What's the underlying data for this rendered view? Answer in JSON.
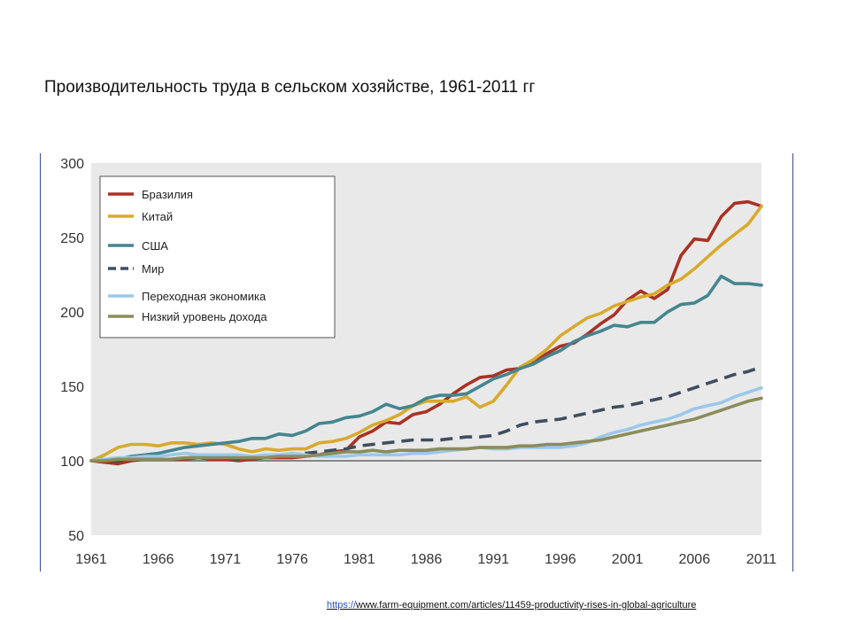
{
  "slide": {
    "title": "Производительность труда в сельском хозяйстве, 1961-2011 гг"
  },
  "source": {
    "prefix": "https://",
    "path": "www.farm-equipment.com/articles/11459-productivity-rises-in-global-agriculture"
  },
  "chart_data": {
    "type": "line",
    "title": "",
    "xlabel": "",
    "ylabel": "",
    "xlim": [
      1961,
      2011
    ],
    "ylim": [
      50,
      300
    ],
    "xticks": [
      "1961",
      "1966",
      "1971",
      "1976",
      "1981",
      "1986",
      "1991",
      "1996",
      "2001",
      "2006",
      "2011"
    ],
    "yticks": [
      "50",
      "100",
      "150",
      "200",
      "250",
      "300"
    ],
    "reference_line": 100,
    "grid": false,
    "legend_position": "top-left",
    "x": [
      1961,
      1962,
      1963,
      1964,
      1965,
      1966,
      1967,
      1968,
      1969,
      1970,
      1971,
      1972,
      1973,
      1974,
      1975,
      1976,
      1977,
      1978,
      1979,
      1980,
      1981,
      1982,
      1983,
      1984,
      1985,
      1986,
      1987,
      1988,
      1989,
      1990,
      1991,
      1992,
      1993,
      1994,
      1995,
      1996,
      1997,
      1998,
      1999,
      2000,
      2001,
      2002,
      2003,
      2004,
      2005,
      2006,
      2007,
      2008,
      2009,
      2010,
      2011
    ],
    "series": [
      {
        "name": "Бразилия",
        "color": "#a83224",
        "dash": false,
        "values": [
          100,
          99,
          98,
          100,
          101,
          101,
          101,
          101,
          102,
          101,
          101,
          100,
          101,
          102,
          102,
          102,
          103,
          104,
          106,
          107,
          116,
          120,
          126,
          125,
          131,
          133,
          138,
          145,
          151,
          156,
          157,
          161,
          162,
          166,
          172,
          177,
          179,
          185,
          192,
          198,
          208,
          214,
          209,
          215,
          238,
          249,
          248,
          264,
          273,
          274,
          271
        ]
      },
      {
        "name": "Китай",
        "color": "#d8aa2c",
        "dash": false,
        "values": [
          100,
          104,
          109,
          111,
          111,
          110,
          112,
          112,
          111,
          112,
          111,
          108,
          106,
          108,
          107,
          108,
          108,
          112,
          113,
          115,
          119,
          124,
          127,
          131,
          137,
          140,
          140,
          140,
          143,
          136,
          140,
          151,
          163,
          168,
          175,
          184,
          190,
          196,
          199,
          204,
          207,
          210,
          212,
          218,
          222,
          229,
          237,
          245,
          252,
          259,
          271
        ]
      },
      {
        "name": "США",
        "color": "#45858f",
        "dash": false,
        "values": [
          100,
          101,
          101,
          103,
          104,
          105,
          107,
          109,
          110,
          111,
          112,
          113,
          115,
          115,
          118,
          117,
          120,
          125,
          126,
          129,
          130,
          133,
          138,
          135,
          137,
          142,
          144,
          144,
          145,
          150,
          155,
          158,
          162,
          165,
          170,
          174,
          180,
          184,
          187,
          191,
          190,
          193,
          193,
          200,
          205,
          206,
          211,
          224,
          219,
          219,
          218
        ]
      },
      {
        "name": "Мир",
        "color": "#3f4e5f",
        "dash": true,
        "values": [
          100,
          100,
          100,
          101,
          101,
          101,
          101,
          102,
          102,
          102,
          102,
          101,
          102,
          103,
          103,
          104,
          105,
          106,
          107,
          108,
          110,
          111,
          112,
          113,
          114,
          114,
          114,
          115,
          116,
          116,
          117,
          120,
          124,
          126,
          127,
          128,
          130,
          132,
          134,
          136,
          137,
          139,
          141,
          143,
          146,
          149,
          152,
          155,
          158,
          160,
          163
        ]
      },
      {
        "name": "Переходная экономика",
        "color": "#9bc8ea",
        "dash": false,
        "values": [
          100,
          101,
          102,
          102,
          103,
          103,
          104,
          105,
          104,
          104,
          104,
          104,
          103,
          104,
          104,
          105,
          104,
          103,
          103,
          103,
          104,
          104,
          104,
          104,
          105,
          105,
          106,
          107,
          108,
          109,
          108,
          108,
          109,
          109,
          109,
          109,
          110,
          112,
          116,
          119,
          121,
          124,
          126,
          128,
          131,
          135,
          137,
          139,
          143,
          146,
          149
        ]
      },
      {
        "name": "Низкий уровень дохода",
        "color": "#8b8c5a",
        "dash": false,
        "values": [
          100,
          100,
          101,
          101,
          101,
          101,
          101,
          102,
          102,
          102,
          102,
          102,
          102,
          102,
          103,
          103,
          103,
          104,
          105,
          106,
          106,
          107,
          106,
          107,
          107,
          107,
          108,
          108,
          108,
          109,
          109,
          109,
          110,
          110,
          111,
          111,
          112,
          113,
          114,
          116,
          118,
          120,
          122,
          124,
          126,
          128,
          131,
          134,
          137,
          140,
          142
        ]
      }
    ]
  }
}
